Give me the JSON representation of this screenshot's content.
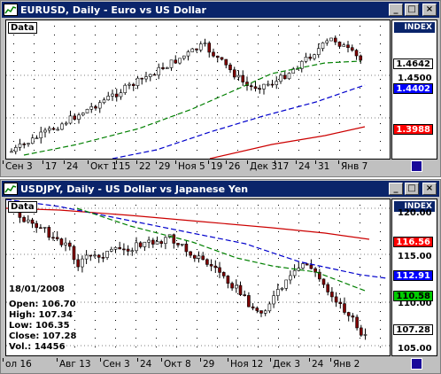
{
  "windows": [
    {
      "title": "EURUSD, Daily - Euro vs US Dollar",
      "data_label": "Data",
      "index_label": "INDEX",
      "y_ticks": [
        "1.4500"
      ],
      "badges": [
        {
          "text": "1.4642",
          "bg": "#ffffff",
          "fg": "#000000"
        },
        {
          "text": "1.4402",
          "bg": "#0000ff",
          "fg": "#ffffff"
        },
        {
          "text": "1.3988",
          "bg": "#ff0000",
          "fg": "#ffffff"
        }
      ],
      "x_labels": [
        "Сен 3",
        "17",
        "24",
        "Окт 1",
        "15",
        "22",
        "29",
        "Ноя 5",
        "19",
        "26",
        "Дек 3",
        "17",
        "24",
        "31",
        "Янв 7"
      ]
    },
    {
      "title": "USDJPY, Daily - US Dollar vs Japanese Yen",
      "data_label": "Data",
      "index_label": "INDEX",
      "y_ticks": [
        "120.00",
        "115.00",
        "110.00",
        "105.00"
      ],
      "badges": [
        {
          "text": "116.56",
          "bg": "#ff0000",
          "fg": "#ffffff"
        },
        {
          "text": "112.91",
          "bg": "#0000ff",
          "fg": "#ffffff"
        },
        {
          "text": "110.58",
          "bg": "#00cc00",
          "fg": "#000000"
        },
        {
          "text": "107.28",
          "bg": "#ffffff",
          "fg": "#000000"
        }
      ],
      "x_labels": [
        "ол 16",
        "Авг 13",
        "Сен 3",
        "24",
        "Окт 8",
        "29",
        "Ноя 12",
        "Дек 3",
        "24",
        "Янв 2"
      ],
      "info": {
        "date": "18/01/2008",
        "open": "Open: 106.70",
        "high": "High: 107.34",
        "low": "Low: 106.35",
        "close": "Close: 107.28",
        "vol": "Vol.: 14456"
      }
    }
  ],
  "colors": {
    "title_bg": "#0a246a",
    "window_bg": "#c0c0c0",
    "candle": "#800000",
    "ma_green": "#008000",
    "ma_blue": "#0000cc",
    "ma_red": "#cc0000"
  },
  "icons": [
    "chart-app-icon",
    "minimize-icon",
    "maximize-icon",
    "close-icon"
  ]
}
